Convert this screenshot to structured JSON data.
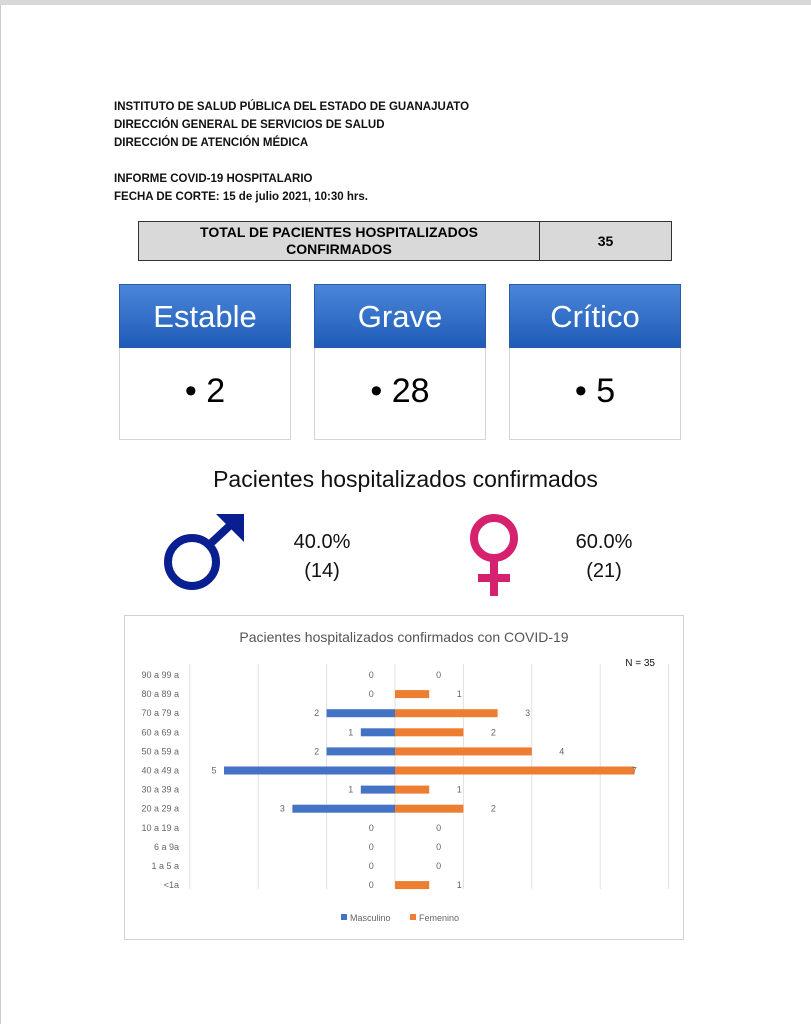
{
  "header": {
    "lines": [
      "INSTITUTO DE SALUD PÚBLICA DEL ESTADO DE GUANAJUATO",
      "DIRECCIÓN GENERAL DE SERVICIOS DE SALUD",
      "DIRECCIÓN DE ATENCIÓN MÉDICA"
    ],
    "report": "INFORME COVID-19 HOSPITALARIO",
    "date": "FECHA DE CORTE: 15 de julio 2021, 10:30 hrs."
  },
  "total": {
    "label_line1": "TOTAL DE PACIENTES HOSPITALIZADOS",
    "label_line2": "CONFIRMADOS",
    "value": "35"
  },
  "status": [
    {
      "label": "Estable",
      "value": "• 2"
    },
    {
      "label": "Grave",
      "value": "• 28"
    },
    {
      "label": "Crítico",
      "value": "• 5"
    }
  ],
  "gender": {
    "title": "Pacientes hospitalizados confirmados",
    "male": {
      "pct": "40.0%",
      "count": "(14)",
      "color": "#0a1f8f"
    },
    "female": {
      "pct": "60.0%",
      "count": "(21)",
      "color": "#d6226e"
    }
  },
  "chart_data": {
    "type": "bar",
    "orientation": "horizontal-population-pyramid",
    "title": "Pacientes hospitalizados confirmados con COVID-19",
    "annotation": "N = 35",
    "categories": [
      "90 a 99 a",
      "80 a 89 a",
      "70 a 79 a",
      "60 a 69 a",
      "50 a 59 a",
      "40 a 49 a",
      "30 a 39 a",
      "20 a 29 a",
      "10 a 19 a",
      "6 a 9a",
      "1 a 5 a",
      "<1a"
    ],
    "series": [
      {
        "name": "Masculino",
        "color": "#4472c4",
        "values": [
          0,
          0,
          2,
          1,
          2,
          5,
          1,
          3,
          0,
          0,
          0,
          0
        ]
      },
      {
        "name": "Femenino",
        "color": "#ed7d31",
        "values": [
          0,
          1,
          3,
          2,
          4,
          7,
          1,
          2,
          0,
          0,
          0,
          1
        ]
      }
    ],
    "xlim": [
      -6,
      8
    ],
    "grid": true,
    "legend": "bottom"
  }
}
